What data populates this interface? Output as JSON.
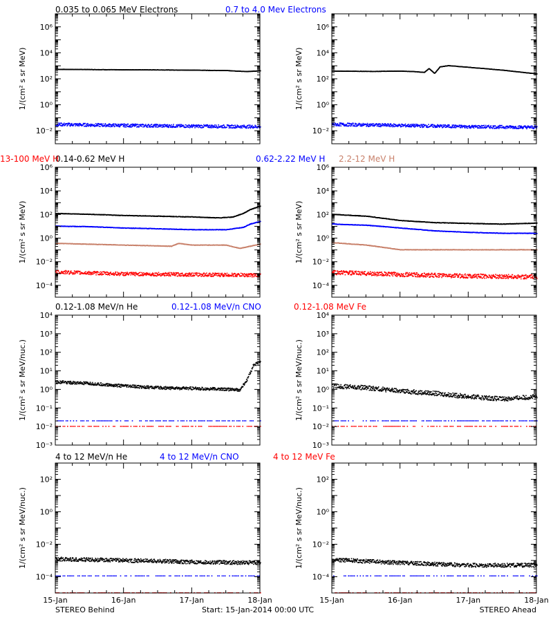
{
  "colors": {
    "black": "#000000",
    "blue": "#0000ff",
    "tan": "#c8806a",
    "red": "#ff0000"
  },
  "footer": {
    "left": "STEREO Behind",
    "center": "Start: 15-Jan-2014 00:00 UTC",
    "right": "STEREO Ahead"
  },
  "chart_data": [
    {
      "type": "scatter",
      "row": 0,
      "spacecraft": "STEREO Behind",
      "scale": "log",
      "ylabel": "1/(cm² s sr MeV)",
      "ylim": [
        0.001,
        10000000
      ],
      "yticks": [
        0.01,
        1,
        100,
        10000,
        1000000
      ],
      "xlim": [
        0,
        3
      ],
      "xticks": [
        "15-Jan",
        "16-Jan",
        "17-Jan",
        "18-Jan"
      ],
      "series": [
        {
          "name": "0.035 to 0.065 MeV Electrons",
          "color": "#000000",
          "noise": 0.01,
          "points": [
            [
              0,
              520
            ],
            [
              0.5,
              500
            ],
            [
              1,
              480
            ],
            [
              1.5,
              470
            ],
            [
              2,
              450
            ],
            [
              2.5,
              420
            ],
            [
              2.8,
              350
            ],
            [
              3,
              400
            ]
          ]
        },
        {
          "name": "0.7 to 4.0 Mev Electrons",
          "color": "#0000ff",
          "noise": 0.12,
          "points": [
            [
              0,
              0.03
            ],
            [
              1,
              0.025
            ],
            [
              2,
              0.022
            ],
            [
              3,
              0.02
            ]
          ]
        }
      ]
    },
    {
      "type": "scatter",
      "row": 0,
      "spacecraft": "STEREO Ahead",
      "scale": "log",
      "ylabel": "1/(cm² s sr MeV)",
      "ylim": [
        0.001,
        10000000
      ],
      "yticks": [
        0.01,
        1,
        100,
        10000,
        1000000
      ],
      "xlim": [
        0,
        3
      ],
      "xticks": [
        "15-Jan",
        "16-Jan",
        "17-Jan",
        "18-Jan"
      ],
      "series": [
        {
          "name": "0.035 to 0.065 MeV Electrons",
          "color": "#000000",
          "noise": 0.01,
          "points": [
            [
              0,
              380
            ],
            [
              0.6,
              360
            ],
            [
              1,
              380
            ],
            [
              1.2,
              350
            ],
            [
              1.35,
              300
            ],
            [
              1.42,
              600
            ],
            [
              1.5,
              250
            ],
            [
              1.58,
              800
            ],
            [
              1.7,
              1000
            ],
            [
              2,
              750
            ],
            [
              2.5,
              450
            ],
            [
              3,
              230
            ]
          ]
        },
        {
          "name": "0.7 to 4.0 Mev Electrons",
          "color": "#0000ff",
          "noise": 0.12,
          "points": [
            [
              0,
              0.03
            ],
            [
              1,
              0.025
            ],
            [
              2,
              0.02
            ],
            [
              3,
              0.018
            ]
          ]
        }
      ]
    },
    {
      "type": "scatter",
      "row": 1,
      "spacecraft": "STEREO Behind",
      "scale": "log",
      "ylabel": "1/(cm² s sr MeV)",
      "ylim": [
        1e-05,
        1000000
      ],
      "yticks": [
        0.0001,
        0.01,
        1,
        100,
        10000,
        1000000
      ],
      "xlim": [
        0,
        3
      ],
      "xticks": [
        "15-Jan",
        "16-Jan",
        "17-Jan",
        "18-Jan"
      ],
      "series": [
        {
          "name": "0.14-0.62 MeV H",
          "color": "#000000",
          "noise": 0.02,
          "points": [
            [
              0,
              120
            ],
            [
              0.5,
              100
            ],
            [
              1,
              80
            ],
            [
              1.5,
              70
            ],
            [
              2,
              60
            ],
            [
              2.4,
              50
            ],
            [
              2.6,
              60
            ],
            [
              2.75,
              120
            ],
            [
              2.85,
              250
            ],
            [
              3,
              500
            ]
          ]
        },
        {
          "name": "0.62-2.22 MeV H",
          "color": "#0000ff",
          "noise": 0.02,
          "points": [
            [
              0,
              10
            ],
            [
              0.5,
              9
            ],
            [
              1,
              7
            ],
            [
              1.5,
              6
            ],
            [
              2,
              5
            ],
            [
              2.5,
              5
            ],
            [
              2.75,
              8
            ],
            [
              2.85,
              15
            ],
            [
              3,
              25
            ]
          ]
        },
        {
          "name": "2.2-12 MeV H",
          "color": "#c8806a",
          "noise": 0.02,
          "points": [
            [
              0,
              0.35
            ],
            [
              1,
              0.25
            ],
            [
              1.7,
              0.2
            ],
            [
              1.8,
              0.35
            ],
            [
              2,
              0.25
            ],
            [
              2.5,
              0.25
            ],
            [
              2.7,
              0.13
            ],
            [
              2.85,
              0.2
            ],
            [
              3,
              0.3
            ]
          ]
        },
        {
          "name": "13-100 MeV H",
          "color": "#ff0000",
          "noise": 0.15,
          "points": [
            [
              0,
              0.0013
            ],
            [
              1,
              0.0009
            ],
            [
              2,
              0.0008
            ],
            [
              3,
              0.0007
            ]
          ]
        }
      ]
    },
    {
      "type": "scatter",
      "row": 1,
      "spacecraft": "STEREO Ahead",
      "scale": "log",
      "ylabel": "1/(cm² s sr MeV)",
      "ylim": [
        1e-05,
        1000000
      ],
      "yticks": [
        0.0001,
        0.01,
        1,
        100,
        10000,
        1000000
      ],
      "xlim": [
        0,
        3
      ],
      "xticks": [
        "15-Jan",
        "16-Jan",
        "17-Jan",
        "18-Jan"
      ],
      "series": [
        {
          "name": "0.14-0.62 MeV H",
          "color": "#000000",
          "noise": 0.02,
          "points": [
            [
              0,
              100
            ],
            [
              0.5,
              70
            ],
            [
              1,
              30
            ],
            [
              1.5,
              20
            ],
            [
              2,
              17
            ],
            [
              2.5,
              15
            ],
            [
              3,
              18
            ]
          ]
        },
        {
          "name": "0.62-2.22 MeV H",
          "color": "#0000ff",
          "noise": 0.02,
          "points": [
            [
              0,
              15
            ],
            [
              0.5,
              12
            ],
            [
              1,
              7
            ],
            [
              1.5,
              4
            ],
            [
              2,
              3
            ],
            [
              2.5,
              2.5
            ],
            [
              3,
              2.5
            ]
          ]
        },
        {
          "name": "2.2-12 MeV H",
          "color": "#c8806a",
          "noise": 0.02,
          "points": [
            [
              0,
              0.4
            ],
            [
              0.5,
              0.25
            ],
            [
              1,
              0.1
            ],
            [
              1.5,
              0.1
            ],
            [
              2,
              0.1
            ],
            [
              3,
              0.1
            ]
          ]
        },
        {
          "name": "13-100 MeV H",
          "color": "#ff0000",
          "noise": 0.18,
          "points": [
            [
              0,
              0.0012
            ],
            [
              1,
              0.0008
            ],
            [
              2,
              0.0006
            ],
            [
              3,
              0.0005
            ]
          ]
        }
      ]
    },
    {
      "type": "scatter",
      "row": 2,
      "spacecraft": "STEREO Behind",
      "scale": "log",
      "ylabel": "1/(cm² s sr MeV/nuc.)",
      "ylim": [
        0.001,
        10000
      ],
      "yticks": [
        0.001,
        0.01,
        0.1,
        1,
        10,
        100,
        1000,
        10000
      ],
      "ytick_labels": [
        "10⁻³",
        "10⁻²",
        "10⁻¹",
        "10⁰",
        "10¹",
        "10²",
        "10³",
        "10⁴"
      ],
      "xlim": [
        0,
        3
      ],
      "xticks": [
        "15-Jan",
        "16-Jan",
        "17-Jan",
        "18-Jan"
      ],
      "series": [
        {
          "name": "0.12-1.08 MeV/n He",
          "color": "#000000",
          "noise": 0.08,
          "points": [
            [
              0,
              2.5
            ],
            [
              0.5,
              2
            ],
            [
              1,
              1.5
            ],
            [
              1.5,
              1.2
            ],
            [
              2,
              1.1
            ],
            [
              2.5,
              1
            ],
            [
              2.7,
              0.9
            ],
            [
              2.8,
              3
            ],
            [
              2.9,
              20
            ],
            [
              3,
              30
            ]
          ]
        },
        {
          "name": "0.12-1.08 MeV/n CNO",
          "color": "#0000ff",
          "noise": 0.0,
          "sparse": true,
          "points": [
            [
              0,
              0.02
            ],
            [
              3,
              0.02
            ]
          ]
        },
        {
          "name": "0.12-1.08 MeV Fe",
          "color": "#ff0000",
          "noise": 0.0,
          "sparse": true,
          "points": [
            [
              0,
              0.01
            ],
            [
              3,
              0.01
            ]
          ]
        }
      ]
    },
    {
      "type": "scatter",
      "row": 2,
      "spacecraft": "STEREO Ahead",
      "scale": "log",
      "ylabel": "1/(cm² s sr MeV/nuc.)",
      "ylim": [
        0.001,
        10000
      ],
      "yticks": [
        0.001,
        0.01,
        0.1,
        1,
        10,
        100,
        1000,
        10000
      ],
      "ytick_labels": [
        "10⁻³",
        "10⁻²",
        "10⁻¹",
        "10⁰",
        "10¹",
        "10²",
        "10³",
        "10⁴"
      ],
      "xlim": [
        0,
        3
      ],
      "xticks": [
        "15-Jan",
        "16-Jan",
        "17-Jan",
        "18-Jan"
      ],
      "series": [
        {
          "name": "0.12-1.08 MeV/n He",
          "color": "#000000",
          "noise": 0.12,
          "points": [
            [
              0,
              1.5
            ],
            [
              0.5,
              1.2
            ],
            [
              1,
              0.8
            ],
            [
              1.5,
              0.6
            ],
            [
              2,
              0.4
            ],
            [
              2.5,
              0.3
            ],
            [
              3,
              0.4
            ]
          ]
        },
        {
          "name": "0.12-1.08 MeV/n CNO",
          "color": "#0000ff",
          "noise": 0.0,
          "sparse": true,
          "points": [
            [
              0,
              0.02
            ],
            [
              3,
              0.02
            ]
          ]
        },
        {
          "name": "0.12-1.08 MeV Fe",
          "color": "#ff0000",
          "noise": 0.0,
          "sparse": true,
          "points": [
            [
              0,
              0.01
            ],
            [
              3,
              0.01
            ]
          ]
        }
      ]
    },
    {
      "type": "scatter",
      "row": 3,
      "spacecraft": "STEREO Behind",
      "scale": "log",
      "ylabel": "1/(cm² s sr MeV/nuc.)",
      "ylim": [
        1e-05,
        1000
      ],
      "yticks": [
        0.0001,
        0.01,
        1,
        100
      ],
      "xlim": [
        0,
        3
      ],
      "xticks": [
        "15-Jan",
        "16-Jan",
        "17-Jan",
        "18-Jan"
      ],
      "series": [
        {
          "name": "4 to 12 MeV/n He",
          "color": "#000000",
          "noise": 0.12,
          "points": [
            [
              0,
              0.0012
            ],
            [
              1,
              0.001
            ],
            [
              2,
              0.0008
            ],
            [
              3,
              0.0007
            ]
          ]
        },
        {
          "name": "4 to 12 MeV/n CNO",
          "color": "#0000ff",
          "noise": 0.0,
          "sparse": true,
          "points": [
            [
              0,
              0.00011
            ],
            [
              3,
              0.00011
            ]
          ]
        },
        {
          "name": "4 to 12 MeV Fe",
          "color": "#ff0000",
          "noise": 0.0,
          "sparse": true,
          "points": [
            [
              0,
              1e-05
            ],
            [
              3,
              1e-05
            ]
          ]
        }
      ]
    },
    {
      "type": "scatter",
      "row": 3,
      "spacecraft": "STEREO Ahead",
      "scale": "log",
      "ylabel": "1/(cm² s sr MeV/nuc.)",
      "ylim": [
        1e-05,
        1000
      ],
      "yticks": [
        0.0001,
        0.01,
        1,
        100
      ],
      "xlim": [
        0,
        3
      ],
      "xticks": [
        "15-Jan",
        "16-Jan",
        "17-Jan",
        "18-Jan"
      ],
      "series": [
        {
          "name": "4 to 12 MeV/n He",
          "color": "#000000",
          "noise": 0.12,
          "points": [
            [
              0,
              0.0011
            ],
            [
              1,
              0.0007
            ],
            [
              2,
              0.0005
            ],
            [
              3,
              0.0005
            ]
          ]
        },
        {
          "name": "4 to 12 MeV/n CNO",
          "color": "#0000ff",
          "noise": 0.0,
          "sparse": true,
          "points": [
            [
              0,
              0.00011
            ],
            [
              3,
              0.00011
            ]
          ]
        },
        {
          "name": "4 to 12 MeV Fe",
          "color": "#ff0000",
          "noise": 0.0,
          "sparse": true,
          "points": [
            [
              0,
              1e-05
            ],
            [
              3,
              1e-05
            ]
          ]
        }
      ]
    }
  ]
}
